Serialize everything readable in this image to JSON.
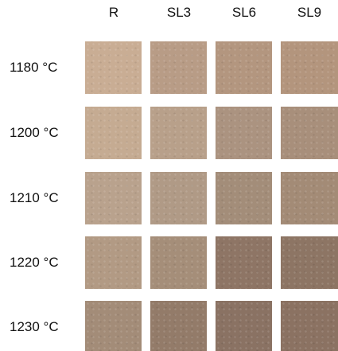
{
  "columns": [
    "R",
    "SL3",
    "SL6",
    "SL9"
  ],
  "rows": [
    "1180 °C",
    "1200 °C",
    "1210 °C",
    "1220 °C",
    "1230 °C"
  ]
}
